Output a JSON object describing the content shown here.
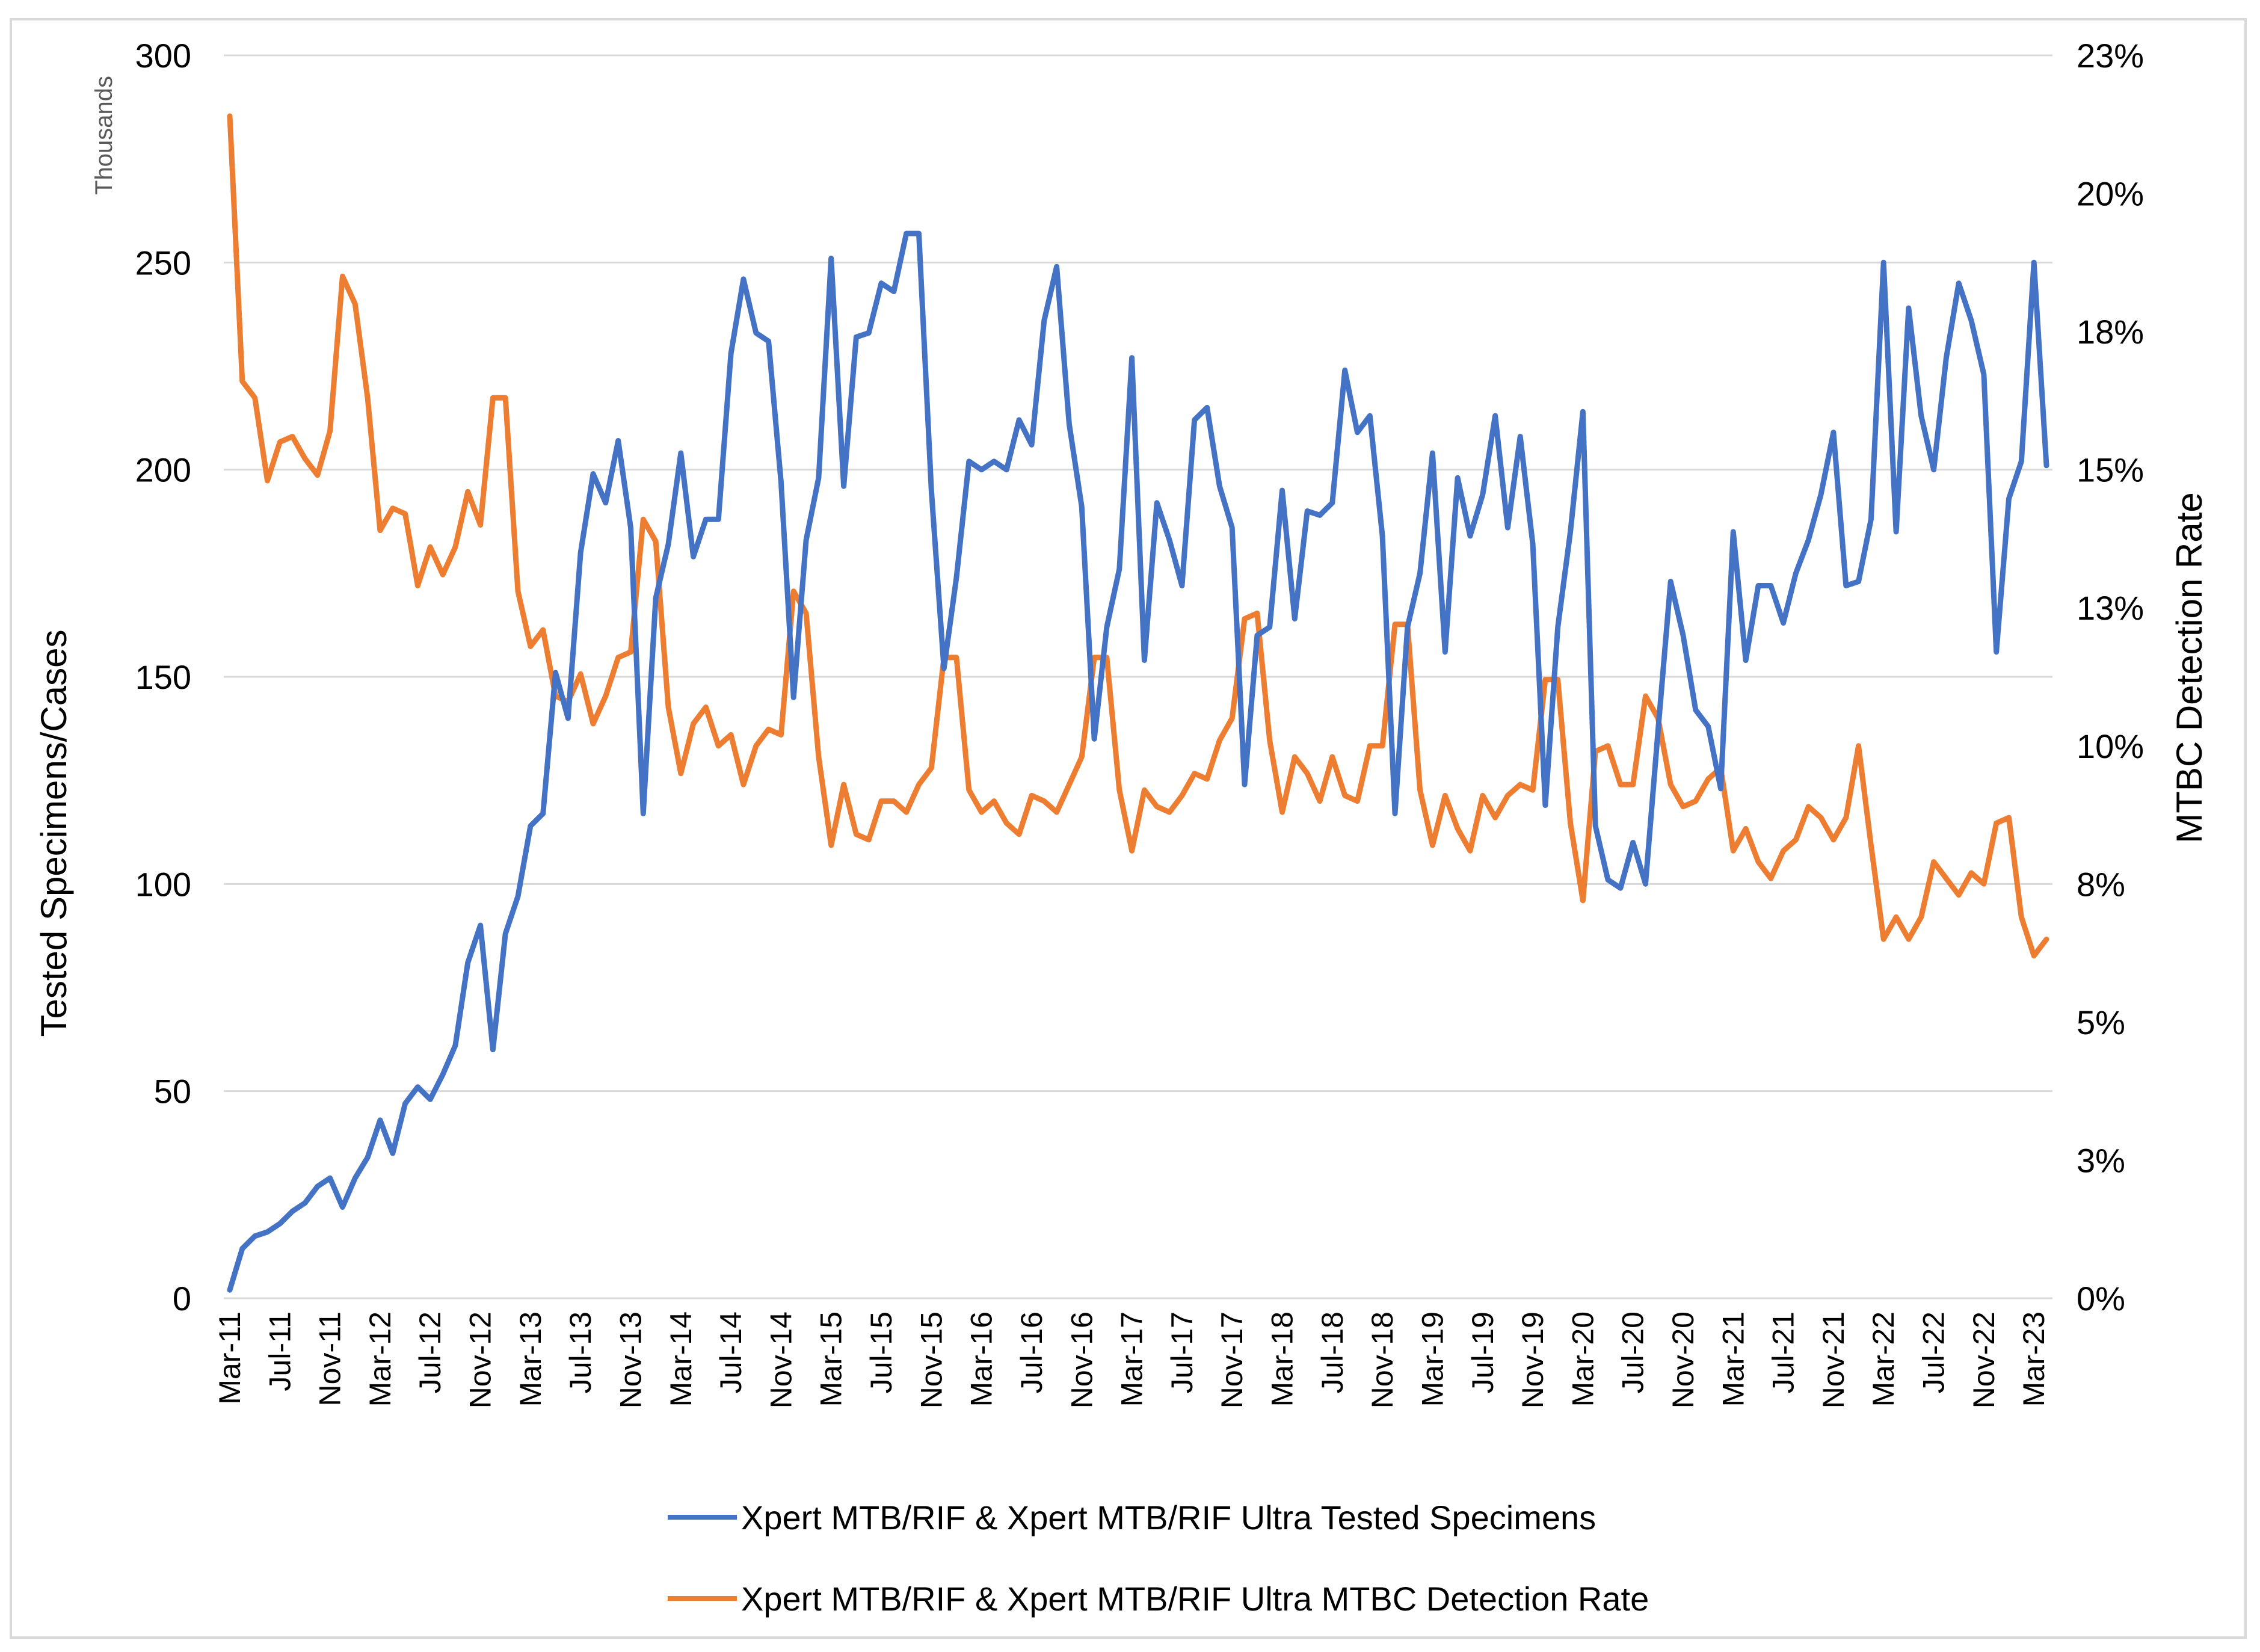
{
  "chart_data": {
    "type": "line",
    "title": "",
    "xlabel": "",
    "ylabel": "Tested Specimens/Cases",
    "y_units_note": "Thousands",
    "y2label": "MTBC Detection Rate",
    "ylim": [
      0,
      300
    ],
    "y_ticks": [
      "0",
      "50",
      "100",
      "150",
      "200",
      "250",
      "300"
    ],
    "y2lim": [
      0,
      22.5
    ],
    "y2_ticks": [
      "0%",
      "3%",
      "5%",
      "8%",
      "10%",
      "13%",
      "15%",
      "18%",
      "20%",
      "23%"
    ],
    "grid": true,
    "legend_position": "bottom",
    "x_tick_labels": [
      "Mar-11",
      "Jul-11",
      "Nov-11",
      "Mar-12",
      "Jul-12",
      "Nov-12",
      "Mar-13",
      "Jul-13",
      "Nov-13",
      "Mar-14",
      "Jul-14",
      "Nov-14",
      "Mar-15",
      "Jul-15",
      "Nov-15",
      "Mar-16",
      "Jul-16",
      "Nov-16",
      "Mar-17",
      "Jul-17",
      "Nov-17",
      "Mar-18",
      "Jul-18",
      "Nov-18",
      "Mar-19",
      "Jul-19",
      "Nov-19",
      "Mar-20",
      "Jul-20",
      "Nov-20",
      "Mar-21",
      "Jul-21",
      "Nov-21",
      "Mar-22",
      "Jul-22",
      "Nov-22",
      "Mar-23"
    ],
    "x_start": "Mar-11",
    "x_step": "1 month",
    "series": [
      {
        "name": "Xpert MTB/RIF & Xpert MTB/RIF Ultra Tested Specimens",
        "axis": "left",
        "color": "#4472C4",
        "values": [
          2,
          12,
          15,
          16,
          18,
          21,
          23,
          27,
          29,
          22,
          29,
          34,
          43,
          35,
          47,
          51,
          48,
          54,
          61,
          81,
          90,
          60,
          88,
          97,
          114,
          117,
          151,
          140,
          180,
          199,
          192,
          207,
          186,
          117,
          169,
          182,
          204,
          179,
          188,
          188,
          228,
          246,
          233,
          231,
          197,
          145,
          183,
          198,
          251,
          196,
          232,
          233,
          245,
          243,
          257,
          257,
          195,
          152,
          174,
          202,
          200,
          202,
          200,
          212,
          206,
          236,
          249,
          211,
          191,
          135,
          162,
          176,
          227,
          154,
          192,
          183,
          172,
          212,
          215,
          196,
          186,
          124,
          160,
          162,
          195,
          164,
          190,
          189,
          192,
          224,
          209,
          213,
          184,
          117,
          162,
          175,
          204,
          156,
          198,
          184,
          194,
          213,
          186,
          208,
          182,
          119,
          162,
          185,
          214,
          114,
          101,
          99,
          110,
          100,
          137,
          173,
          160,
          142,
          138,
          123,
          185,
          154,
          172,
          172,
          163,
          175,
          183,
          194,
          209,
          172,
          173,
          188,
          250,
          185,
          239,
          213,
          200,
          227,
          245,
          236,
          223,
          156,
          193,
          202,
          250,
          201
        ]
      },
      {
        "name": "Xpert MTB/RIF & Xpert MTB/RIF Ultra MTBC Detection Rate",
        "axis": "right",
        "color": "#ED7D31",
        "values": [
          21.4,
          16.6,
          16.3,
          14.8,
          15.5,
          15.6,
          15.2,
          14.9,
          15.7,
          18.5,
          18.0,
          16.3,
          13.9,
          14.3,
          14.2,
          12.9,
          13.6,
          13.1,
          13.6,
          14.6,
          14.0,
          16.3,
          16.3,
          12.8,
          11.8,
          12.1,
          10.9,
          10.8,
          11.3,
          10.4,
          10.9,
          11.6,
          11.7,
          14.1,
          13.7,
          10.7,
          9.5,
          10.4,
          10.7,
          10.0,
          10.2,
          9.3,
          10.0,
          10.3,
          10.2,
          12.8,
          12.4,
          9.8,
          8.2,
          9.3,
          8.4,
          8.3,
          9.0,
          9.0,
          8.8,
          9.3,
          9.6,
          11.6,
          11.6,
          9.2,
          8.8,
          9.0,
          8.6,
          8.4,
          9.1,
          9.0,
          8.8,
          9.3,
          9.8,
          11.6,
          11.6,
          9.2,
          8.1,
          9.2,
          8.9,
          8.8,
          9.1,
          9.5,
          9.4,
          10.1,
          10.5,
          12.3,
          12.4,
          10.1,
          8.8,
          9.8,
          9.5,
          9.0,
          9.8,
          9.1,
          9.0,
          10.0,
          10.0,
          12.2,
          12.2,
          9.2,
          8.2,
          9.1,
          8.5,
          8.1,
          9.1,
          8.7,
          9.1,
          9.3,
          9.2,
          11.2,
          11.2,
          8.6,
          7.2,
          9.9,
          10.0,
          9.3,
          9.3,
          10.9,
          10.5,
          9.3,
          8.9,
          9.0,
          9.4,
          9.6,
          8.1,
          8.5,
          7.9,
          7.6,
          8.1,
          8.3,
          8.9,
          8.7,
          8.3,
          8.7,
          10.0,
          8.2,
          6.5,
          6.9,
          6.5,
          6.9,
          7.9,
          7.6,
          7.3,
          7.7,
          7.5,
          8.6,
          8.7,
          6.9,
          6.2,
          6.5
        ]
      }
    ]
  }
}
